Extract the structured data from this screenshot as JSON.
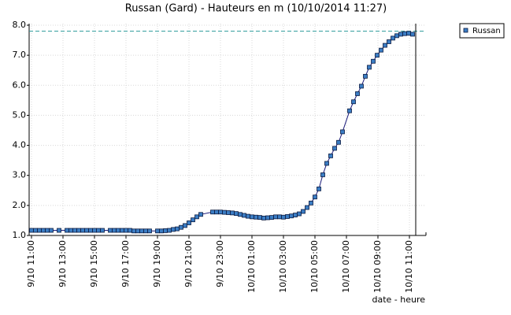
{
  "chart_data": {
    "type": "line",
    "title": "Russan (Gard) - Hauteurs en m (10/10/2014 11:27)",
    "x_label": "date - heure",
    "x": [
      0,
      0.25,
      0.5,
      0.75,
      1,
      1.25,
      1.75,
      2.25,
      2.5,
      2.75,
      3,
      3.25,
      3.5,
      3.75,
      4,
      4.25,
      4.5,
      5,
      5.25,
      5.5,
      5.75,
      6,
      6.25,
      6.5,
      6.75,
      7,
      7.25,
      7.5,
      8,
      8.25,
      8.5,
      8.75,
      9,
      9.25,
      9.5,
      9.75,
      10,
      10.25,
      10.5,
      10.75,
      11.5,
      11.75,
      12,
      12.25,
      12.5,
      12.75,
      13,
      13.25,
      13.5,
      13.75,
      14,
      14.25,
      14.5,
      14.75,
      15,
      15.25,
      15.5,
      15.75,
      16,
      16.25,
      16.5,
      16.75,
      17,
      17.25,
      17.5,
      17.75,
      18,
      18.25,
      18.5,
      18.75,
      19,
      19.25,
      19.5,
      19.75,
      20.2,
      20.45,
      20.7,
      20.95,
      21.2,
      21.45,
      21.7,
      21.95,
      22.2,
      22.45,
      22.7,
      22.95,
      23.2,
      23.45,
      23.7,
      23.95,
      24.2
    ],
    "series": [
      {
        "name": "Russan",
        "color": "#3b7dc4",
        "line_color": "#1a1a7a",
        "values": [
          1.17,
          1.17,
          1.17,
          1.17,
          1.17,
          1.17,
          1.17,
          1.17,
          1.17,
          1.17,
          1.17,
          1.17,
          1.17,
          1.17,
          1.17,
          1.17,
          1.17,
          1.17,
          1.17,
          1.17,
          1.17,
          1.17,
          1.17,
          1.15,
          1.15,
          1.15,
          1.15,
          1.15,
          1.15,
          1.15,
          1.16,
          1.17,
          1.2,
          1.22,
          1.27,
          1.33,
          1.42,
          1.52,
          1.62,
          1.7,
          1.78,
          1.78,
          1.78,
          1.77,
          1.76,
          1.75,
          1.73,
          1.7,
          1.67,
          1.64,
          1.62,
          1.61,
          1.6,
          1.58,
          1.59,
          1.6,
          1.62,
          1.62,
          1.61,
          1.63,
          1.65,
          1.68,
          1.72,
          1.8,
          1.93,
          2.08,
          2.28,
          2.55,
          3.02,
          3.4,
          3.65,
          3.9,
          4.1,
          4.45,
          5.15,
          5.45,
          5.72,
          5.97,
          6.3,
          6.6,
          6.8,
          7.0,
          7.17,
          7.33,
          7.45,
          7.57,
          7.65,
          7.7,
          7.72,
          7.73,
          7.7
        ]
      }
    ],
    "xlim": [
      -0.15,
      25.05
    ],
    "ylim": [
      1,
      8
    ],
    "xticks": [
      {
        "value": 0,
        "label": "9/10 11:00"
      },
      {
        "value": 2,
        "label": "9/10 13:00"
      },
      {
        "value": 4,
        "label": "9/10 15:00"
      },
      {
        "value": 6,
        "label": "9/10 17:00"
      },
      {
        "value": 8,
        "label": "9/10 19:00"
      },
      {
        "value": 10,
        "label": "9/10 21:00"
      },
      {
        "value": 12,
        "label": "9/10 23:00"
      },
      {
        "value": 14,
        "label": "10/10 01:00"
      },
      {
        "value": 16,
        "label": "10/10 03:00"
      },
      {
        "value": 18,
        "label": "10/10 05:00"
      },
      {
        "value": 20,
        "label": "10/10 07:00"
      },
      {
        "value": 22,
        "label": "10/10 09:00"
      },
      {
        "value": 24,
        "label": "10/10 11:00"
      }
    ],
    "yticks": [
      {
        "value": 1,
        "label": "1.0"
      },
      {
        "value": 2,
        "label": "2.0"
      },
      {
        "value": 3,
        "label": "3.0"
      },
      {
        "value": 4,
        "label": "4.0"
      },
      {
        "value": 5,
        "label": "5.0"
      },
      {
        "value": 6,
        "label": "6.0"
      },
      {
        "value": 7,
        "label": "7.0"
      },
      {
        "value": 8,
        "label": "8.0"
      }
    ],
    "grid": true,
    "legend": "top-right",
    "reference_lines": {
      "y": 7.8,
      "y_color": "#2a9a9a",
      "x": 24.4,
      "x_color": "#000000"
    }
  }
}
